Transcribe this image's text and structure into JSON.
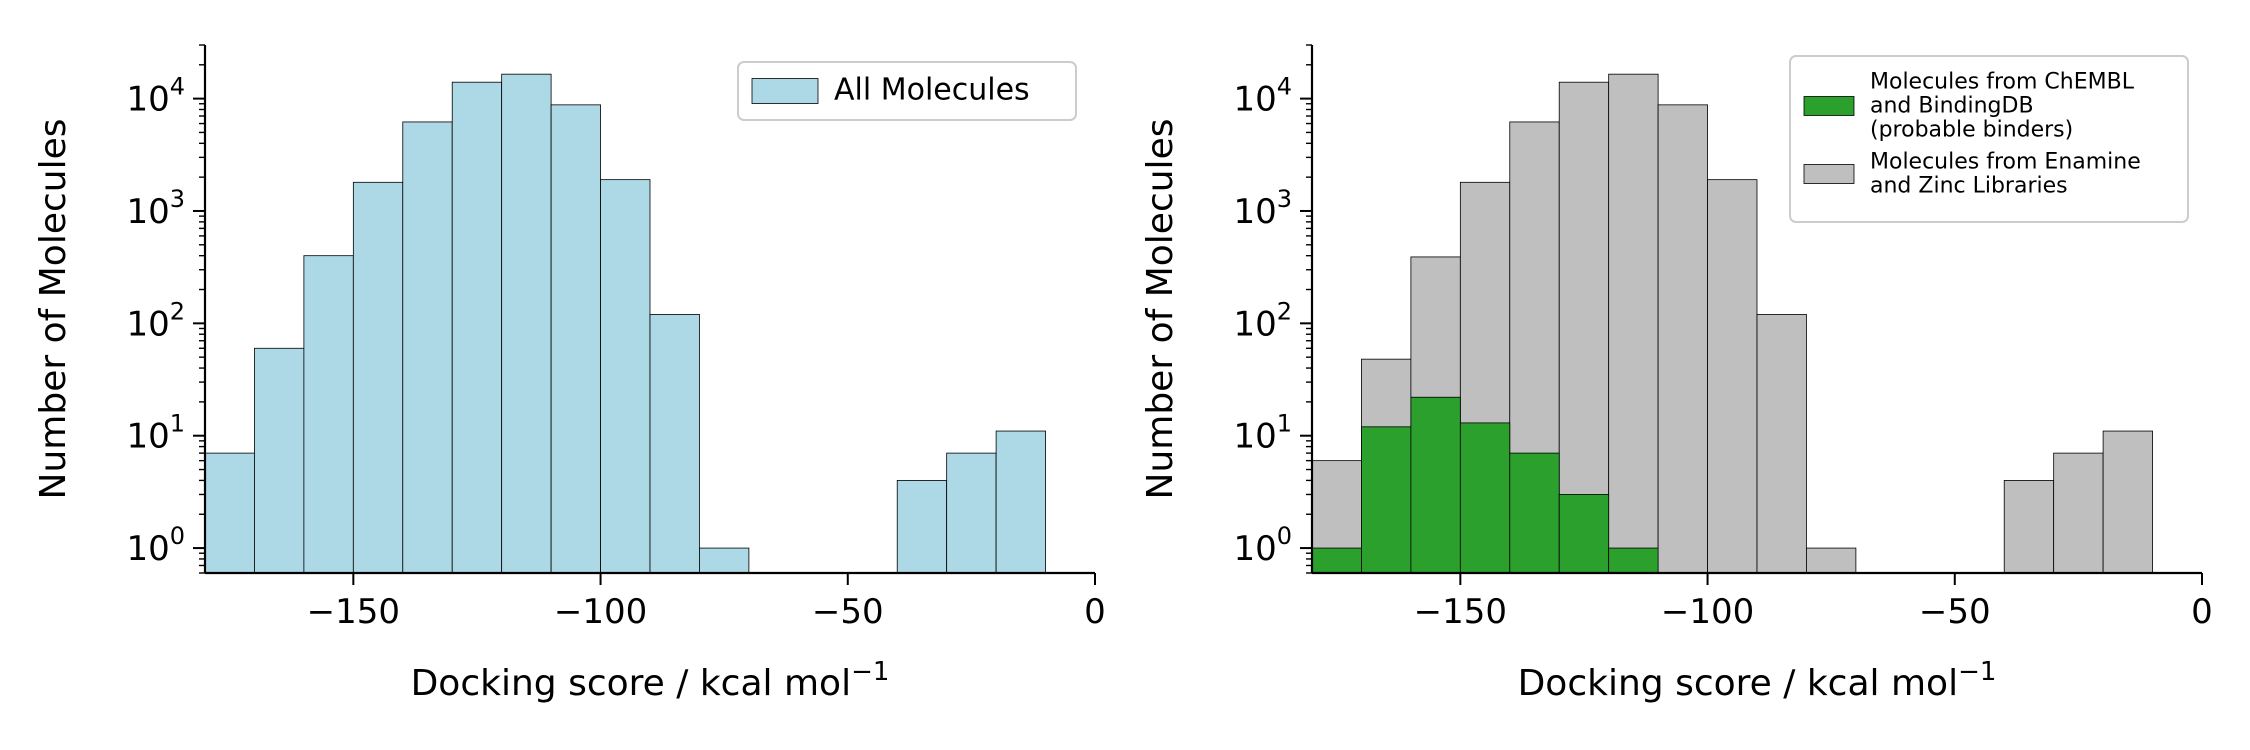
{
  "chart_data": [
    {
      "type": "bar",
      "subtype": "histogram",
      "xlabel": "Docking score / kcal mol",
      "xlabel_sup": "−1",
      "ylabel": "Number of Molecules",
      "xlim": [
        -180,
        0
      ],
      "ylim": [
        0.6,
        30000
      ],
      "yscale": "log",
      "grid": false,
      "legend_position": "top-right",
      "x_ticks": [
        -150,
        -100,
        -50,
        0
      ],
      "x_tick_labels": [
        "−150",
        "−100",
        "−50",
        "0"
      ],
      "y_ticks": [
        1,
        10,
        100,
        1000,
        10000
      ],
      "y_tick_labels": [
        {
          "base": "10",
          "exp": "0"
        },
        {
          "base": "10",
          "exp": "1"
        },
        {
          "base": "10",
          "exp": "2"
        },
        {
          "base": "10",
          "exp": "3"
        },
        {
          "base": "10",
          "exp": "4"
        }
      ],
      "bin_edges": [
        -180,
        -170,
        -160,
        -150,
        -140,
        -130,
        -120,
        -110,
        -100,
        -90,
        -80,
        -70,
        -60,
        -50,
        -40,
        -30,
        -20,
        -10
      ],
      "series": [
        {
          "name": "All Molecules",
          "color": "#add8e6",
          "values": [
            7,
            60,
            400,
            1800,
            6200,
            14000,
            16500,
            8800,
            1900,
            120,
            1,
            0,
            0,
            0,
            4,
            7,
            11
          ]
        }
      ]
    },
    {
      "type": "bar",
      "subtype": "histogram",
      "xlabel": "Docking score / kcal mol",
      "xlabel_sup": "−1",
      "ylabel": "Number of Molecules",
      "xlim": [
        -180,
        0
      ],
      "ylim": [
        0.6,
        30000
      ],
      "yscale": "log",
      "grid": false,
      "legend_position": "top-right",
      "x_ticks": [
        -150,
        -100,
        -50,
        0
      ],
      "x_tick_labels": [
        "−150",
        "−100",
        "−50",
        "0"
      ],
      "y_ticks": [
        1,
        10,
        100,
        1000,
        10000
      ],
      "y_tick_labels": [
        {
          "base": "10",
          "exp": "0"
        },
        {
          "base": "10",
          "exp": "1"
        },
        {
          "base": "10",
          "exp": "2"
        },
        {
          "base": "10",
          "exp": "3"
        },
        {
          "base": "10",
          "exp": "4"
        }
      ],
      "bin_edges": [
        -180,
        -170,
        -160,
        -150,
        -140,
        -130,
        -120,
        -110,
        -100,
        -90,
        -80,
        -70,
        -60,
        -50,
        -40,
        -30,
        -20,
        -10
      ],
      "series": [
        {
          "name_lines": [
            "Molecules from Enamine",
            "and Zinc Libraries"
          ],
          "color": "#bfbfbf",
          "values": [
            6,
            48,
            390,
            1800,
            6200,
            14000,
            16500,
            8800,
            1900,
            120,
            1,
            0,
            0,
            0,
            4,
            7,
            11
          ]
        },
        {
          "name_lines": [
            "Molecules from ChEMBL",
            "and BindingDB",
            "(probable binders)"
          ],
          "color": "#2ca02c",
          "values": [
            1,
            12,
            22,
            13,
            7,
            3,
            1,
            0,
            0,
            0,
            0,
            0,
            0,
            0,
            0,
            0,
            0
          ]
        }
      ]
    }
  ]
}
